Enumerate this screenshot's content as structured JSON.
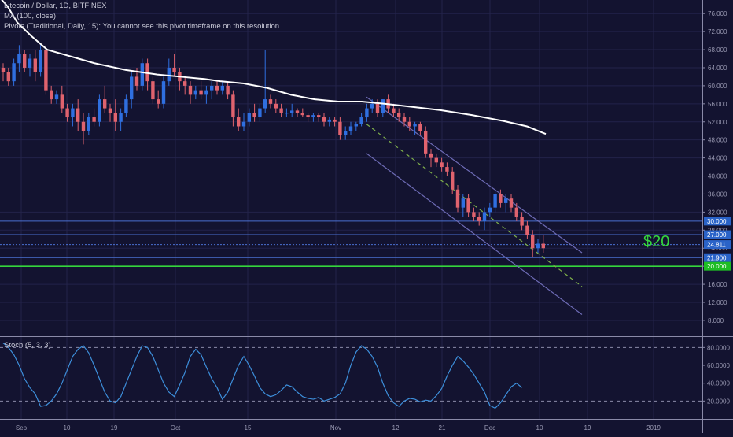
{
  "legend": {
    "symbol_line": "Litecoin / Dollar, 1D, BITFINEX",
    "ma_line": "MA (100, close)",
    "pivots_line": "Pivots (Traditional, Daily, 15): You cannot see this pivot timeframe on this resolution",
    "stoch_label": "Stoch (5, 3, 3)"
  },
  "colors": {
    "background": "#131330",
    "grid": "#23234a",
    "up_candle": "#2f6fe0",
    "down_candle": "#e0636e",
    "ma_line": "#ffffff",
    "channel": "#6d6bb5",
    "median_dashed": "#7fb04a",
    "green_line": "#35d63c",
    "stoch": "#3d8fdb",
    "axis_text": "#9a9ab3",
    "price_tag_blue": "#2a63c8",
    "price_tag_green": "#1ebd24"
  },
  "annotation": {
    "text": "$20",
    "color": "#35d63c"
  },
  "chart_data": {
    "type": "candlestick",
    "title": "Litecoin / Dollar, 1D, BITFINEX",
    "y_axis": {
      "ticks": [
        "76.000",
        "72.000",
        "68.000",
        "64.000",
        "60.000",
        "56.000",
        "52.000",
        "48.000",
        "44.000",
        "40.000",
        "36.000",
        "32.000",
        "28.000",
        "24.000",
        "20.000",
        "16.000",
        "12.000",
        "8.000"
      ],
      "range": [
        4.5,
        79
      ]
    },
    "x_axis": {
      "ticks": [
        "Sep",
        "10",
        "19",
        "Oct",
        "15",
        "Nov",
        "12",
        "21",
        "Dec",
        "10",
        "19",
        "2019"
      ]
    },
    "ohlc": [
      [
        64,
        65,
        61,
        63
      ],
      [
        63,
        64,
        60,
        61
      ],
      [
        61,
        66,
        60,
        65
      ],
      [
        65,
        69,
        63,
        67
      ],
      [
        67,
        68,
        63,
        64
      ],
      [
        64,
        67,
        62,
        66
      ],
      [
        66,
        68,
        61,
        63
      ],
      [
        63,
        69,
        62,
        68
      ],
      [
        68,
        69,
        58,
        59
      ],
      [
        59,
        60,
        56,
        57
      ],
      [
        57,
        59,
        56,
        58
      ],
      [
        58,
        60,
        54,
        55
      ],
      [
        55,
        56,
        52,
        53
      ],
      [
        53,
        56,
        51,
        55
      ],
      [
        55,
        57,
        50,
        52
      ],
      [
        52,
        54,
        47,
        50
      ],
      [
        50,
        54,
        49,
        53
      ],
      [
        53,
        55,
        51,
        52
      ],
      [
        52,
        58,
        51,
        57
      ],
      [
        57,
        60,
        54,
        55
      ],
      [
        55,
        56,
        52,
        54
      ],
      [
        54,
        57,
        50,
        52
      ],
      [
        52,
        55,
        50,
        54
      ],
      [
        54,
        58,
        53,
        57
      ],
      [
        57,
        63,
        55,
        62
      ],
      [
        62,
        64,
        59,
        60
      ],
      [
        60,
        66,
        59,
        65
      ],
      [
        65,
        66,
        59,
        61
      ],
      [
        61,
        62,
        56,
        57
      ],
      [
        57,
        59,
        55,
        56
      ],
      [
        56,
        62,
        55,
        61
      ],
      [
        61,
        66,
        60,
        64
      ],
      [
        64,
        67,
        62,
        63
      ],
      [
        63,
        64,
        59,
        61
      ],
      [
        61,
        62,
        58,
        60
      ],
      [
        60,
        61,
        56,
        58
      ],
      [
        58,
        60,
        57,
        59
      ],
      [
        59,
        61,
        57,
        58
      ],
      [
        58,
        60,
        56,
        59
      ],
      [
        59,
        61,
        57,
        60
      ],
      [
        60,
        61,
        58,
        59
      ],
      [
        59,
        61,
        58,
        60
      ],
      [
        60,
        61,
        57,
        58
      ],
      [
        58,
        59,
        51,
        53
      ],
      [
        53,
        55,
        50,
        51
      ],
      [
        51,
        54,
        50,
        52
      ],
      [
        52,
        55,
        51,
        54
      ],
      [
        54,
        56,
        52,
        53
      ],
      [
        53,
        56,
        52,
        55
      ],
      [
        55,
        68,
        54,
        57
      ],
      [
        57,
        58,
        55,
        56
      ],
      [
        56,
        57,
        54,
        55
      ],
      [
        55,
        56,
        53,
        54
      ],
      [
        54,
        55,
        53,
        54
      ],
      [
        54,
        56,
        53,
        54.5
      ],
      [
        54.5,
        55,
        53,
        54
      ],
      [
        54,
        55,
        53,
        53.5
      ],
      [
        53.5,
        54,
        52,
        53
      ],
      [
        53,
        54,
        52,
        53.5
      ],
      [
        53.5,
        54,
        52,
        53
      ],
      [
        53,
        54,
        51,
        52
      ],
      [
        52,
        53,
        51,
        52.5
      ],
      [
        52.5,
        53,
        51,
        52
      ],
      [
        52,
        53,
        48,
        49
      ],
      [
        49,
        51,
        48,
        50
      ],
      [
        50,
        52,
        49,
        51
      ],
      [
        51,
        52,
        50,
        51.5
      ],
      [
        51.5,
        54,
        51,
        53
      ],
      [
        53,
        56,
        52,
        55
      ],
      [
        55,
        57,
        54,
        56
      ],
      [
        56,
        57,
        53,
        54
      ],
      [
        54,
        57,
        53,
        57
      ],
      [
        57,
        58,
        54,
        55
      ],
      [
        55,
        56,
        53,
        54
      ],
      [
        54,
        55,
        52,
        53
      ],
      [
        53,
        54,
        51,
        52
      ],
      [
        52,
        53,
        50,
        51
      ],
      [
        51,
        52,
        49,
        51.5
      ],
      [
        51.5,
        52,
        49,
        50
      ],
      [
        50,
        51,
        44,
        45
      ],
      [
        45,
        46,
        42,
        44
      ],
      [
        44,
        45,
        42,
        43
      ],
      [
        43,
        44,
        41,
        42
      ],
      [
        42,
        43,
        40,
        41
      ],
      [
        41,
        42,
        36,
        37
      ],
      [
        37,
        38,
        32,
        33
      ],
      [
        33,
        36,
        31,
        35
      ],
      [
        35,
        36,
        31,
        32
      ],
      [
        32,
        33,
        30,
        31
      ],
      [
        31,
        32,
        29,
        30
      ],
      [
        30,
        33,
        28,
        32
      ],
      [
        32,
        34,
        31,
        33
      ],
      [
        33,
        37,
        32,
        36
      ],
      [
        36,
        37,
        33,
        34
      ],
      [
        34,
        36,
        32,
        35
      ],
      [
        35,
        36,
        32,
        33
      ],
      [
        33,
        34,
        30,
        31
      ],
      [
        31,
        32,
        28,
        29
      ],
      [
        29,
        30,
        26,
        27
      ],
      [
        27,
        28,
        22,
        24
      ],
      [
        24,
        26,
        23,
        25
      ],
      [
        25,
        27,
        23,
        24
      ]
    ],
    "ma100": [
      [
        0,
        79.5
      ],
      [
        10,
        77.5
      ],
      [
        22,
        74
      ],
      [
        40,
        71
      ],
      [
        60,
        68
      ],
      [
        80,
        67
      ],
      [
        100,
        66
      ],
      [
        120,
        65
      ],
      [
        160,
        63.5
      ],
      [
        200,
        62.5
      ],
      [
        230,
        62
      ],
      [
        260,
        61.5
      ],
      [
        280,
        61
      ],
      [
        310,
        60.5
      ],
      [
        340,
        59.5
      ],
      [
        370,
        58
      ],
      [
        400,
        57
      ],
      [
        430,
        56.5
      ],
      [
        460,
        56.5
      ],
      [
        490,
        56
      ],
      [
        520,
        55.4
      ],
      [
        560,
        54.6
      ],
      [
        600,
        53.5
      ],
      [
        640,
        52.2
      ],
      [
        670,
        51
      ],
      [
        694,
        49.3
      ]
    ],
    "horizontal_levels": [
      {
        "price": 30.0,
        "label": "30.000",
        "color": "#2a63c8"
      },
      {
        "price": 27.0,
        "label": "27.000",
        "color": "#2a63c8"
      },
      {
        "price": 24.811,
        "label": "24.811",
        "color": "#2a63c8"
      },
      {
        "price": 21.9,
        "label": "21.900",
        "color": "#2a63c8"
      },
      {
        "price": 20.0,
        "label": "20.000",
        "color": "#1ebd24"
      }
    ],
    "channel": {
      "upper": [
        [
          466,
          57.5
        ],
        [
          740,
          23
        ]
      ],
      "lower": [
        [
          466,
          45
        ],
        [
          740,
          9.3
        ]
      ],
      "median_dashed": [
        [
          466,
          51.5
        ],
        [
          740,
          15.5
        ]
      ]
    },
    "stoch": {
      "ticks": [
        "80.0000",
        "60.0000",
        "40.0000",
        "20.0000"
      ],
      "range": [
        0,
        90
      ],
      "overbought": 80,
      "oversold": 20,
      "values": [
        85,
        80,
        72,
        60,
        45,
        35,
        28,
        14,
        15,
        20,
        28,
        40,
        55,
        70,
        78,
        82,
        74,
        60,
        45,
        30,
        20,
        18,
        25,
        40,
        55,
        70,
        82,
        80,
        70,
        55,
        40,
        30,
        25,
        38,
        52,
        70,
        78,
        72,
        58,
        45,
        35,
        22,
        30,
        45,
        60,
        70,
        60,
        48,
        35,
        28,
        25,
        27,
        32,
        38,
        36,
        30,
        25,
        23,
        22,
        24,
        20,
        22,
        24,
        28,
        40,
        60,
        75,
        82,
        78,
        70,
        58,
        40,
        26,
        18,
        14,
        20,
        23,
        22,
        19,
        21,
        20,
        26,
        34,
        48,
        60,
        70,
        65,
        58,
        50,
        40,
        30,
        15,
        12,
        18,
        27,
        36,
        40,
        35
      ]
    }
  }
}
